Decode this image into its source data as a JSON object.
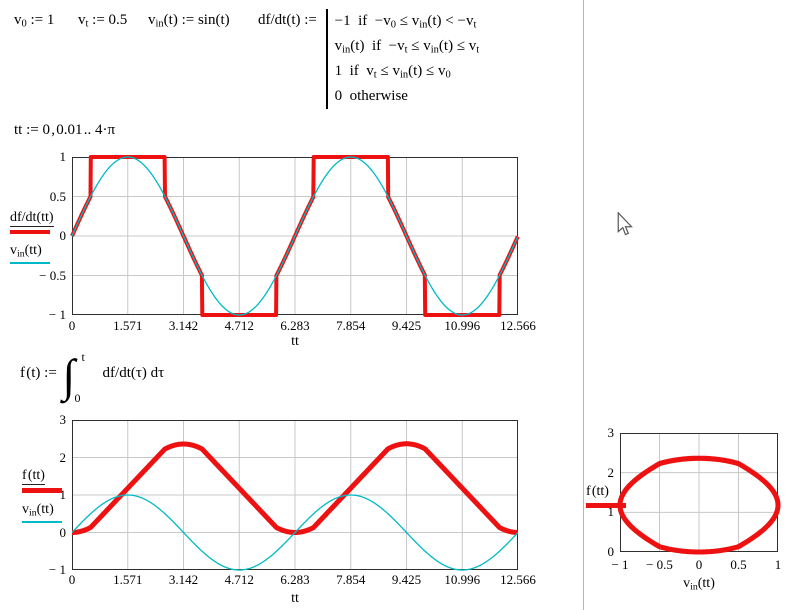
{
  "page": {
    "background": "#ffffff",
    "page_break_color": "#b5b5b5",
    "grid_color": "#c8c8c8",
    "border_color": "#2f2f2f"
  },
  "expressions": {
    "v0_def": [
      {
        "t": "v"
      },
      {
        "t": "0",
        "sub": true
      },
      {
        "t": " := 1"
      }
    ],
    "vt_def": [
      {
        "t": "v"
      },
      {
        "t": "t",
        "sub": true
      },
      {
        "t": " := 0.5"
      }
    ],
    "vin_def": [
      {
        "t": "v"
      },
      {
        "t": "in",
        "sub": true
      },
      {
        "t": "(t) := sin(t)"
      }
    ],
    "dfdt_lhs": [
      {
        "t": "df/dt(t) := "
      }
    ],
    "dfdt_rows": [
      [
        {
          "t": "−1  if  −v"
        },
        {
          "t": "0",
          "sub": true
        },
        {
          "t": " ≤ v"
        },
        {
          "t": "in",
          "sub": true
        },
        {
          "t": "(t) < −v"
        },
        {
          "t": "t",
          "sub": true
        }
      ],
      [
        {
          "t": "v"
        },
        {
          "t": "in",
          "sub": true
        },
        {
          "t": "(t)  if  −v"
        },
        {
          "t": "t",
          "sub": true
        },
        {
          "t": " ≤ v"
        },
        {
          "t": "in",
          "sub": true
        },
        {
          "t": "(t) ≤ v"
        },
        {
          "t": "t",
          "sub": true
        }
      ],
      [
        {
          "t": "1  if  v"
        },
        {
          "t": "t",
          "sub": true
        },
        {
          "t": " ≤ v"
        },
        {
          "t": "in",
          "sub": true
        },
        {
          "t": "(t) ≤ v"
        },
        {
          "t": "0",
          "sub": true
        }
      ],
      [
        {
          "t": "0  otherwise"
        }
      ]
    ],
    "tt_def": [
      {
        "t": "tt := 0 , 0.01 .. 4·π"
      }
    ],
    "f_lhs": [
      {
        "t": "f (t) := "
      }
    ],
    "f_int_symbol": "∫",
    "f_upper": "t",
    "f_lower": "0",
    "f_integrand": [
      {
        "t": "df/dt(τ) dτ"
      }
    ]
  },
  "chart_data": [
    {
      "type": "line",
      "xlabel_runs": [
        {
          "t": "tt"
        }
      ],
      "xlim": [
        0,
        12.566
      ],
      "ylim": [
        -1,
        1
      ],
      "x_tick_labels": [
        "0",
        "1.571",
        "3.142",
        "4.712",
        "6.283",
        "7.854",
        "9.425",
        "10.996",
        "12.566"
      ],
      "x_tick_values": [
        0,
        1.571,
        3.142,
        4.712,
        6.283,
        7.854,
        9.425,
        10.996,
        12.566
      ],
      "y_tick_labels": [
        "1",
        "0.5",
        "0",
        "− 0.5",
        "− 1"
      ],
      "y_tick_values": [
        1,
        0.5,
        0,
        -0.5,
        -1
      ],
      "grid": true,
      "legend": [
        {
          "name_runs": [
            {
              "t": "df/dt(tt)"
            }
          ],
          "underline": true
        },
        {
          "name_runs": [
            {
              "t": "v"
            },
            {
              "t": "in",
              "sub": true
            },
            {
              "t": "(tt)"
            }
          ],
          "underline": false
        }
      ],
      "series": [
        {
          "fn": "dfdt",
          "color": "#ee1111",
          "width": 4
        },
        {
          "fn": "vin",
          "color": "#00b9c6",
          "width": 1.3
        }
      ],
      "params": {
        "v0": 1,
        "vt": 0.5,
        "t_start": 0,
        "t_step": 0.01,
        "t_end": 12.566
      }
    },
    {
      "type": "line",
      "xlabel_runs": [
        {
          "t": "tt"
        }
      ],
      "xlim": [
        0,
        12.566
      ],
      "ylim": [
        -1,
        3
      ],
      "x_tick_labels": [
        "0",
        "1.571",
        "3.142",
        "4.712",
        "6.283",
        "7.854",
        "9.425",
        "10.996",
        "12.566"
      ],
      "x_tick_values": [
        0,
        1.571,
        3.142,
        4.712,
        6.283,
        7.854,
        9.425,
        10.996,
        12.566
      ],
      "y_tick_labels": [
        "3",
        "2",
        "1",
        "0",
        "− 1"
      ],
      "y_tick_values": [
        3,
        2,
        1,
        0,
        -1
      ],
      "grid": true,
      "legend": [
        {
          "name_runs": [
            {
              "t": "f (tt)"
            }
          ],
          "underline": true
        },
        {
          "name_runs": [
            {
              "t": "v"
            },
            {
              "t": "in",
              "sub": true
            },
            {
              "t": "(tt)"
            }
          ],
          "underline": false
        }
      ],
      "series": [
        {
          "fn": "f",
          "color": "#ee1111",
          "width": 5
        },
        {
          "fn": "vin",
          "color": "#00b9c6",
          "width": 1.3
        }
      ],
      "params": {
        "v0": 1,
        "vt": 0.5,
        "t_start": 0,
        "t_step": 0.01,
        "t_end": 12.566
      }
    },
    {
      "type": "line",
      "xlabel_runs": [
        {
          "t": "v"
        },
        {
          "t": "in",
          "sub": true
        },
        {
          "t": "(tt)"
        }
      ],
      "xlim": [
        -1,
        1
      ],
      "ylim": [
        0,
        3
      ],
      "x_tick_labels": [
        "− 1",
        "− 0.5",
        "0",
        "0.5",
        "1"
      ],
      "x_tick_values": [
        -1,
        -0.5,
        0,
        0.5,
        1
      ],
      "y_tick_labels": [
        "3",
        "2",
        "1",
        "0"
      ],
      "y_tick_values": [
        3,
        2,
        1,
        0
      ],
      "grid": true,
      "legend": [
        {
          "name_runs": [
            {
              "t": "f (tt)"
            }
          ],
          "underline": false
        }
      ],
      "series": [
        {
          "x_fn": "vin",
          "y_fn": "f",
          "color": "#ee1111",
          "width": 5
        }
      ],
      "params": {
        "v0": 1,
        "vt": 0.5,
        "t_start": 0,
        "t_step": 0.01,
        "t_end": 12.566
      }
    }
  ],
  "cursor": {
    "type": "arrow"
  }
}
